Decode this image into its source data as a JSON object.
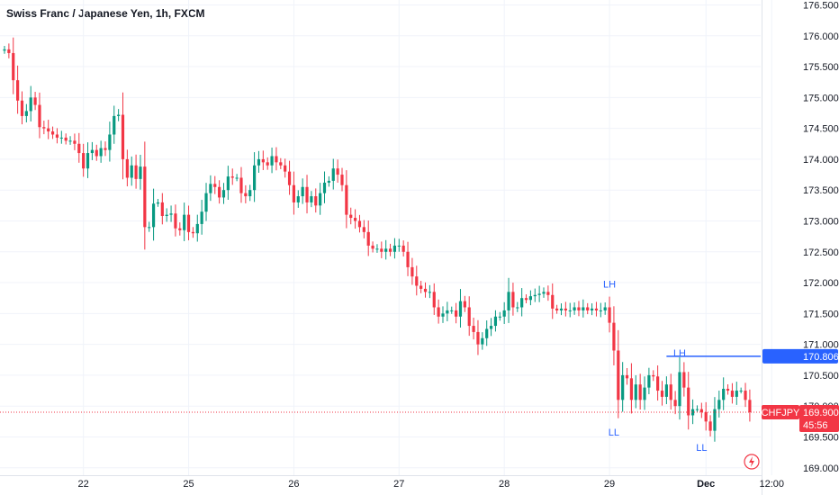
{
  "chart_data": {
    "type": "candlestick",
    "title": "Swiss Franc / Japanese Yen, 1h, FXCM",
    "symbol": "CHFJPY",
    "y_ticks": [
      "176.500",
      "176.000",
      "175.500",
      "175.000",
      "174.500",
      "174.000",
      "173.500",
      "173.000",
      "172.500",
      "172.000",
      "171.500",
      "171.000",
      "170.500",
      "170.000",
      "169.500",
      "169.000"
    ],
    "ylim": [
      168.88,
      176.58
    ],
    "x_ticks": [
      {
        "label": "22",
        "bar": 18
      },
      {
        "label": "25",
        "bar": 42
      },
      {
        "label": "26",
        "bar": 66
      },
      {
        "label": "27",
        "bar": 90
      },
      {
        "label": "28",
        "bar": 114
      },
      {
        "label": "29",
        "bar": 138
      },
      {
        "label": "Dec",
        "bar": 160,
        "bold": true
      },
      {
        "label": "12:00",
        "bar": 175
      }
    ],
    "bar_count": 171,
    "last_price": "169.900",
    "countdown": "45:56",
    "horizontal_line": {
      "price": 170.806,
      "label": "170.806",
      "start_bar": 151
    },
    "annotations": [
      {
        "text": "LH",
        "bar": 138,
        "price": 171.83,
        "where": "above"
      },
      {
        "text": "LL",
        "bar": 139,
        "price": 169.7,
        "where": "below"
      },
      {
        "text": "LH",
        "bar": 154,
        "price": 170.72,
        "where": "above"
      },
      {
        "text": "LL",
        "bar": 159,
        "price": 169.45,
        "where": "below"
      }
    ],
    "colors": {
      "up": "#089981",
      "down": "#f23645",
      "line": "#2962ff",
      "grid": "#f0f3fa",
      "price_line": "#f23645"
    },
    "closes": [
      175.78,
      175.72,
      175.28,
      174.95,
      174.7,
      174.78,
      175.0,
      174.88,
      174.52,
      174.5,
      174.45,
      174.4,
      174.35,
      174.35,
      174.3,
      174.3,
      174.25,
      174.1,
      173.85,
      174.1,
      174.15,
      174.05,
      174.18,
      174.15,
      174.4,
      174.7,
      174.72,
      174.0,
      173.7,
      173.9,
      173.68,
      173.88,
      172.9,
      172.9,
      173.28,
      173.3,
      173.08,
      173.1,
      173.12,
      172.88,
      172.85,
      173.1,
      172.82,
      172.8,
      172.95,
      173.15,
      173.45,
      173.6,
      173.55,
      173.38,
      173.5,
      173.72,
      173.7,
      173.7,
      173.45,
      173.4,
      173.5,
      173.9,
      174.0,
      173.95,
      173.9,
      174.05,
      173.95,
      173.9,
      173.8,
      173.58,
      173.3,
      173.4,
      173.55,
      173.3,
      173.4,
      173.25,
      173.45,
      173.62,
      173.65,
      173.85,
      173.75,
      173.58,
      173.1,
      173.05,
      173.0,
      172.9,
      172.82,
      172.6,
      172.55,
      172.55,
      172.5,
      172.55,
      172.5,
      172.6,
      172.6,
      172.5,
      172.25,
      172.1,
      171.95,
      171.9,
      171.85,
      171.85,
      171.6,
      171.45,
      171.5,
      171.55,
      171.55,
      171.45,
      171.7,
      171.6,
      171.3,
      171.2,
      171.0,
      171.1,
      171.25,
      171.3,
      171.45,
      171.45,
      171.55,
      171.85,
      171.6,
      171.6,
      171.75,
      171.72,
      171.78,
      171.8,
      171.82,
      171.85,
      171.8,
      171.58,
      171.55,
      171.58,
      171.55,
      171.55,
      171.6,
      171.55,
      171.6,
      171.55,
      171.58,
      171.55,
      171.55,
      171.6,
      171.35,
      170.9,
      170.1,
      170.5,
      170.45,
      170.1,
      170.35,
      170.1,
      170.3,
      170.5,
      170.48,
      170.25,
      170.15,
      170.35,
      170.1,
      170.0,
      170.55,
      170.3,
      169.85,
      169.95,
      169.95,
      169.9,
      169.75,
      169.6,
      169.95,
      170.1,
      170.28,
      170.25,
      170.15,
      170.25,
      170.25,
      170.1,
      169.9
    ]
  }
}
